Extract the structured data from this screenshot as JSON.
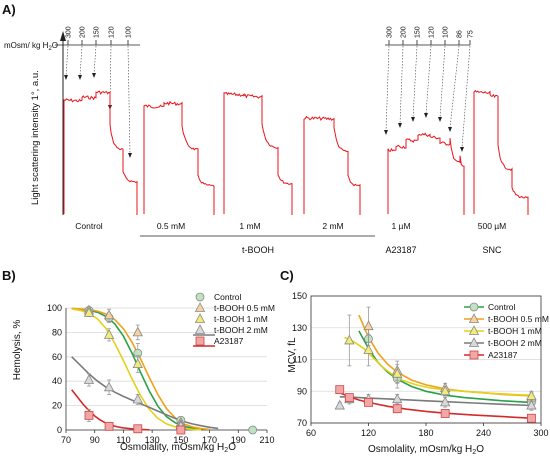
{
  "panels": {
    "a": "A)",
    "b": "B)",
    "c": "C)"
  },
  "colors": {
    "trace": "#e8141b",
    "control": "#2aa14a",
    "t05": "#f0a11a",
    "t1": "#e3d11a",
    "t2": "#7a7a7a",
    "a23187": "#d32a2a"
  },
  "chart_data": [
    {
      "type": "line",
      "panel": "A)",
      "ylabel": "Light scattering intensity 1°, a.u.",
      "osmolality_scale_label": "mOsm/ kg H2O",
      "osmolality_ticks_left": [
        "300",
        "200",
        "150",
        "120",
        "100"
      ],
      "osmolality_ticks_right": [
        "300",
        "200",
        "150",
        "120",
        "100",
        "86",
        "75"
      ],
      "traces": [
        {
          "label": "Control",
          "group": ""
        },
        {
          "label": "0.5 mM",
          "group": "t-BOOH"
        },
        {
          "label": "1 mM",
          "group": "t-BOOH"
        },
        {
          "label": "2 mM",
          "group": "t-BOOH"
        },
        {
          "label": "1 µM",
          "group": "A23187"
        },
        {
          "label": "500 µM",
          "group": "SNC"
        }
      ],
      "group_labels": [
        "t-BOOH",
        "A23187",
        "SNC"
      ]
    },
    {
      "type": "line",
      "panel": "B)",
      "xlabel": "Osmolality, mOsm/kg H2O",
      "ylabel": "Hemolysis, %",
      "xlim": [
        70,
        210
      ],
      "ylim": [
        0,
        100
      ],
      "xticks": [
        "70",
        "90",
        "110",
        "130",
        "150",
        "170",
        "190",
        "210"
      ],
      "yticks": [
        "0",
        "20",
        "40",
        "60",
        "80",
        "100"
      ],
      "legend": "top-right",
      "legend_names": [
        "Control",
        "t-BOOH  0.5 mM",
        "t-BOOH  1 mM",
        "t-BOOH  2 mM",
        "A23187"
      ],
      "series": [
        {
          "name": "Control",
          "color": "#2aa14a",
          "marker": "circle",
          "x": [
            86,
            100,
            120,
            150,
            200
          ],
          "y": [
            98,
            92,
            63,
            8,
            0
          ],
          "err": [
            2,
            4,
            8,
            3,
            1
          ],
          "curve_x": [
            74,
            80,
            86,
            92,
            98,
            104,
            110,
            116,
            122,
            128,
            134,
            140,
            146,
            152,
            158,
            164,
            170
          ],
          "curve_y": [
            99.5,
            99,
            98,
            96.5,
            93,
            87,
            77,
            63,
            47,
            32,
            19.5,
            11,
            6,
            3,
            1.5,
            0.8,
            0.3
          ]
        },
        {
          "name": "t-BOOH  0.5 mM",
          "color": "#f0a11a",
          "marker": "triangle",
          "x": [
            86,
            100,
            120,
            150
          ],
          "y": [
            98,
            94,
            80,
            6
          ],
          "err": [
            2,
            5,
            6,
            2
          ],
          "curve_x": [
            74,
            80,
            86,
            92,
            98,
            104,
            110,
            116,
            122,
            128,
            134,
            140,
            146,
            152,
            158,
            164,
            170
          ],
          "curve_y": [
            99.5,
            99.3,
            98.8,
            97.5,
            95,
            90.5,
            83,
            72,
            58,
            43,
            29,
            17.5,
            10,
            5,
            2.5,
            1.2,
            0.5
          ]
        },
        {
          "name": "t-BOOH  1 mM",
          "color": "#e3d11a",
          "marker": "triangle",
          "x": [
            86,
            100,
            120,
            150
          ],
          "y": [
            96,
            78,
            54,
            4
          ],
          "err": [
            3,
            5,
            7,
            2
          ],
          "curve_x": [
            74,
            80,
            86,
            92,
            98,
            104,
            110,
            116,
            122,
            128,
            134,
            140,
            146,
            152,
            158,
            164
          ],
          "curve_y": [
            99.2,
            98,
            95.5,
            91,
            83,
            71,
            57,
            42,
            28,
            17,
            9.5,
            5,
            2.5,
            1.2,
            0.5,
            0.2
          ]
        },
        {
          "name": "t-BOOH  2 mM",
          "color": "#7a7a7a",
          "marker": "triangle",
          "x": [
            86,
            100,
            120,
            150
          ],
          "y": [
            41,
            35,
            25,
            3
          ],
          "err": [
            5,
            6,
            4,
            2
          ],
          "curve_x": [
            74,
            80,
            86,
            92,
            98,
            104,
            110,
            116,
            122,
            128,
            134,
            140,
            146,
            152,
            158,
            164,
            170,
            176
          ],
          "curve_y": [
            60,
            53,
            46,
            40,
            35,
            31,
            27.5,
            24.5,
            21.5,
            18.5,
            15.5,
            12.5,
            9.5,
            7,
            5,
            3.5,
            2.2,
            1.3
          ]
        },
        {
          "name": "A23187",
          "color": "#d32a2a",
          "marker": "square",
          "x": [
            86,
            100,
            120,
            150
          ],
          "y": [
            12,
            3,
            1,
            0
          ],
          "err": [
            5,
            1,
            0.5,
            0.5
          ],
          "curve_x": [
            74,
            78,
            82,
            86,
            90,
            94,
            98,
            102,
            106,
            110,
            116,
            122,
            128
          ],
          "curve_y": [
            33,
            27,
            21,
            16,
            11.5,
            8,
            5.5,
            3.7,
            2.5,
            1.7,
            1,
            0.5,
            0.2
          ]
        }
      ]
    },
    {
      "type": "line",
      "panel": "C)",
      "xlabel": "Osmolality, mOsm/kg H2O",
      "ylabel": "MCV, fL",
      "xlim": [
        60,
        300
      ],
      "ylim": [
        70,
        150
      ],
      "xticks": [
        "60",
        "120",
        "180",
        "240",
        "300"
      ],
      "yticks": [
        "70",
        "90",
        "110",
        "130",
        "150"
      ],
      "legend": "top-right",
      "legend_names": [
        "Control",
        "t-BOOH  0.5 mM",
        "t-BOOH  1 mM",
        "t-BOOH  2 mM",
        "A23187"
      ],
      "series": [
        {
          "name": "Control",
          "color": "#2aa14a",
          "marker": "circle",
          "x": [
            120,
            150,
            200,
            290
          ],
          "y": [
            123,
            98,
            90,
            83
          ],
          "err": [
            8,
            6,
            3,
            3
          ],
          "curve_x": [
            110,
            120,
            130,
            140,
            150,
            165,
            180,
            200,
            220,
            240,
            260,
            280,
            290
          ],
          "curve_y": [
            128,
            117,
            108,
            102,
            97.5,
            93,
            90,
            87.5,
            86,
            85,
            84,
            83.3,
            83
          ]
        },
        {
          "name": "t-BOOH  0.5 mM",
          "color": "#f0a11a",
          "marker": "triangle",
          "x": [
            120,
            150,
            200,
            290
          ],
          "y": [
            131,
            103,
            92,
            86
          ],
          "err": [
            12,
            6,
            3,
            3
          ],
          "curve_x": [
            110,
            120,
            130,
            140,
            150,
            165,
            180,
            200,
            220,
            240,
            260,
            280,
            290
          ],
          "curve_y": [
            138,
            124,
            114,
            107,
            102,
            97,
            94,
            91.5,
            90,
            89,
            88,
            87.3,
            87
          ]
        },
        {
          "name": "t-BOOH  1 mM",
          "color": "#e3d11a",
          "marker": "triangle",
          "x": [
            100,
            120,
            150,
            200,
            290
          ],
          "y": [
            122,
            116,
            101,
            90,
            87
          ],
          "err": [
            16,
            10,
            6,
            3,
            3
          ],
          "curve_x": [
            95,
            105,
            115,
            125,
            135,
            145,
            155,
            170,
            185,
            200,
            220,
            240,
            260,
            280,
            290
          ],
          "curve_y": [
            124,
            121,
            117,
            111,
            105,
            100.5,
            97,
            94,
            92,
            91,
            90,
            89,
            88.3,
            87.7,
            87.5
          ]
        },
        {
          "name": "t-BOOH  2 mM",
          "color": "#7a7a7a",
          "marker": "triangle",
          "x": [
            90,
            100,
            120,
            150,
            200,
            290
          ],
          "y": [
            81,
            85,
            85,
            85,
            83,
            81
          ],
          "err": [
            2,
            3,
            3,
            3,
            3,
            3
          ],
          "curve_x": [
            90,
            100,
            110,
            120,
            140,
            160,
            180,
            200,
            230,
            260,
            290
          ],
          "curve_y": [
            86.5,
            86.3,
            86,
            85.7,
            85.2,
            84.6,
            84,
            83.4,
            82.6,
            81.8,
            81
          ]
        },
        {
          "name": "A23187",
          "color": "#d32a2a",
          "marker": "square",
          "x": [
            90,
            100,
            120,
            150,
            200,
            290
          ],
          "y": [
            91,
            86,
            83,
            79,
            76,
            73
          ],
          "err": [
            2,
            2,
            2,
            2,
            2,
            1
          ],
          "curve_x": [
            90,
            100,
            110,
            120,
            140,
            160,
            180,
            200,
            230,
            260,
            290
          ],
          "curve_y": [
            89,
            86.5,
            84.5,
            83,
            80.5,
            78.7,
            77.3,
            76.2,
            75,
            74,
            73
          ]
        }
      ]
    }
  ]
}
